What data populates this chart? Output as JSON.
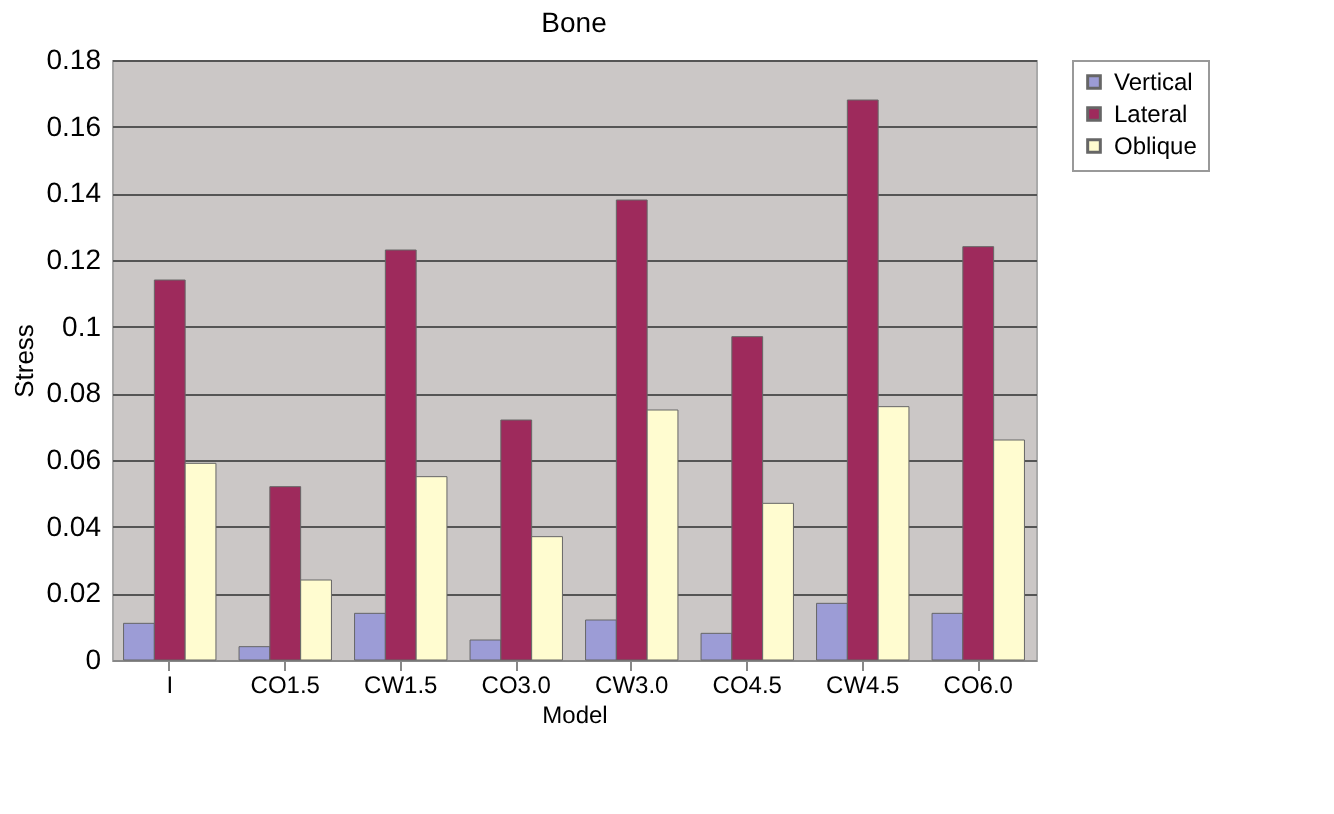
{
  "chart_data": {
    "type": "bar",
    "title": "Bone",
    "xlabel": "Model",
    "ylabel": "Stress",
    "categories": [
      "I",
      "CO1.5",
      "CW1.5",
      "CO3.0",
      "CW3.0",
      "CO4.5",
      "CW4.5",
      "CO6.0"
    ],
    "series": [
      {
        "name": "Vertical",
        "color": "#9c9cd6",
        "values": [
          0.011,
          0.004,
          0.014,
          0.006,
          0.012,
          0.008,
          0.017,
          0.014
        ]
      },
      {
        "name": "Lateral",
        "color": "#9e2a5c",
        "values": [
          0.114,
          0.052,
          0.123,
          0.072,
          0.138,
          0.097,
          0.168,
          0.124
        ]
      },
      {
        "name": "Oblique",
        "color": "#fffcd0",
        "values": [
          0.059,
          0.024,
          0.055,
          0.037,
          0.075,
          0.047,
          0.076,
          0.066
        ]
      }
    ],
    "ylim": [
      0,
      0.18
    ],
    "yticks": [
      0,
      0.02,
      0.04,
      0.06,
      0.08,
      0.1,
      0.12,
      0.14,
      0.16,
      0.18
    ],
    "grid": "y",
    "legend": "right"
  }
}
